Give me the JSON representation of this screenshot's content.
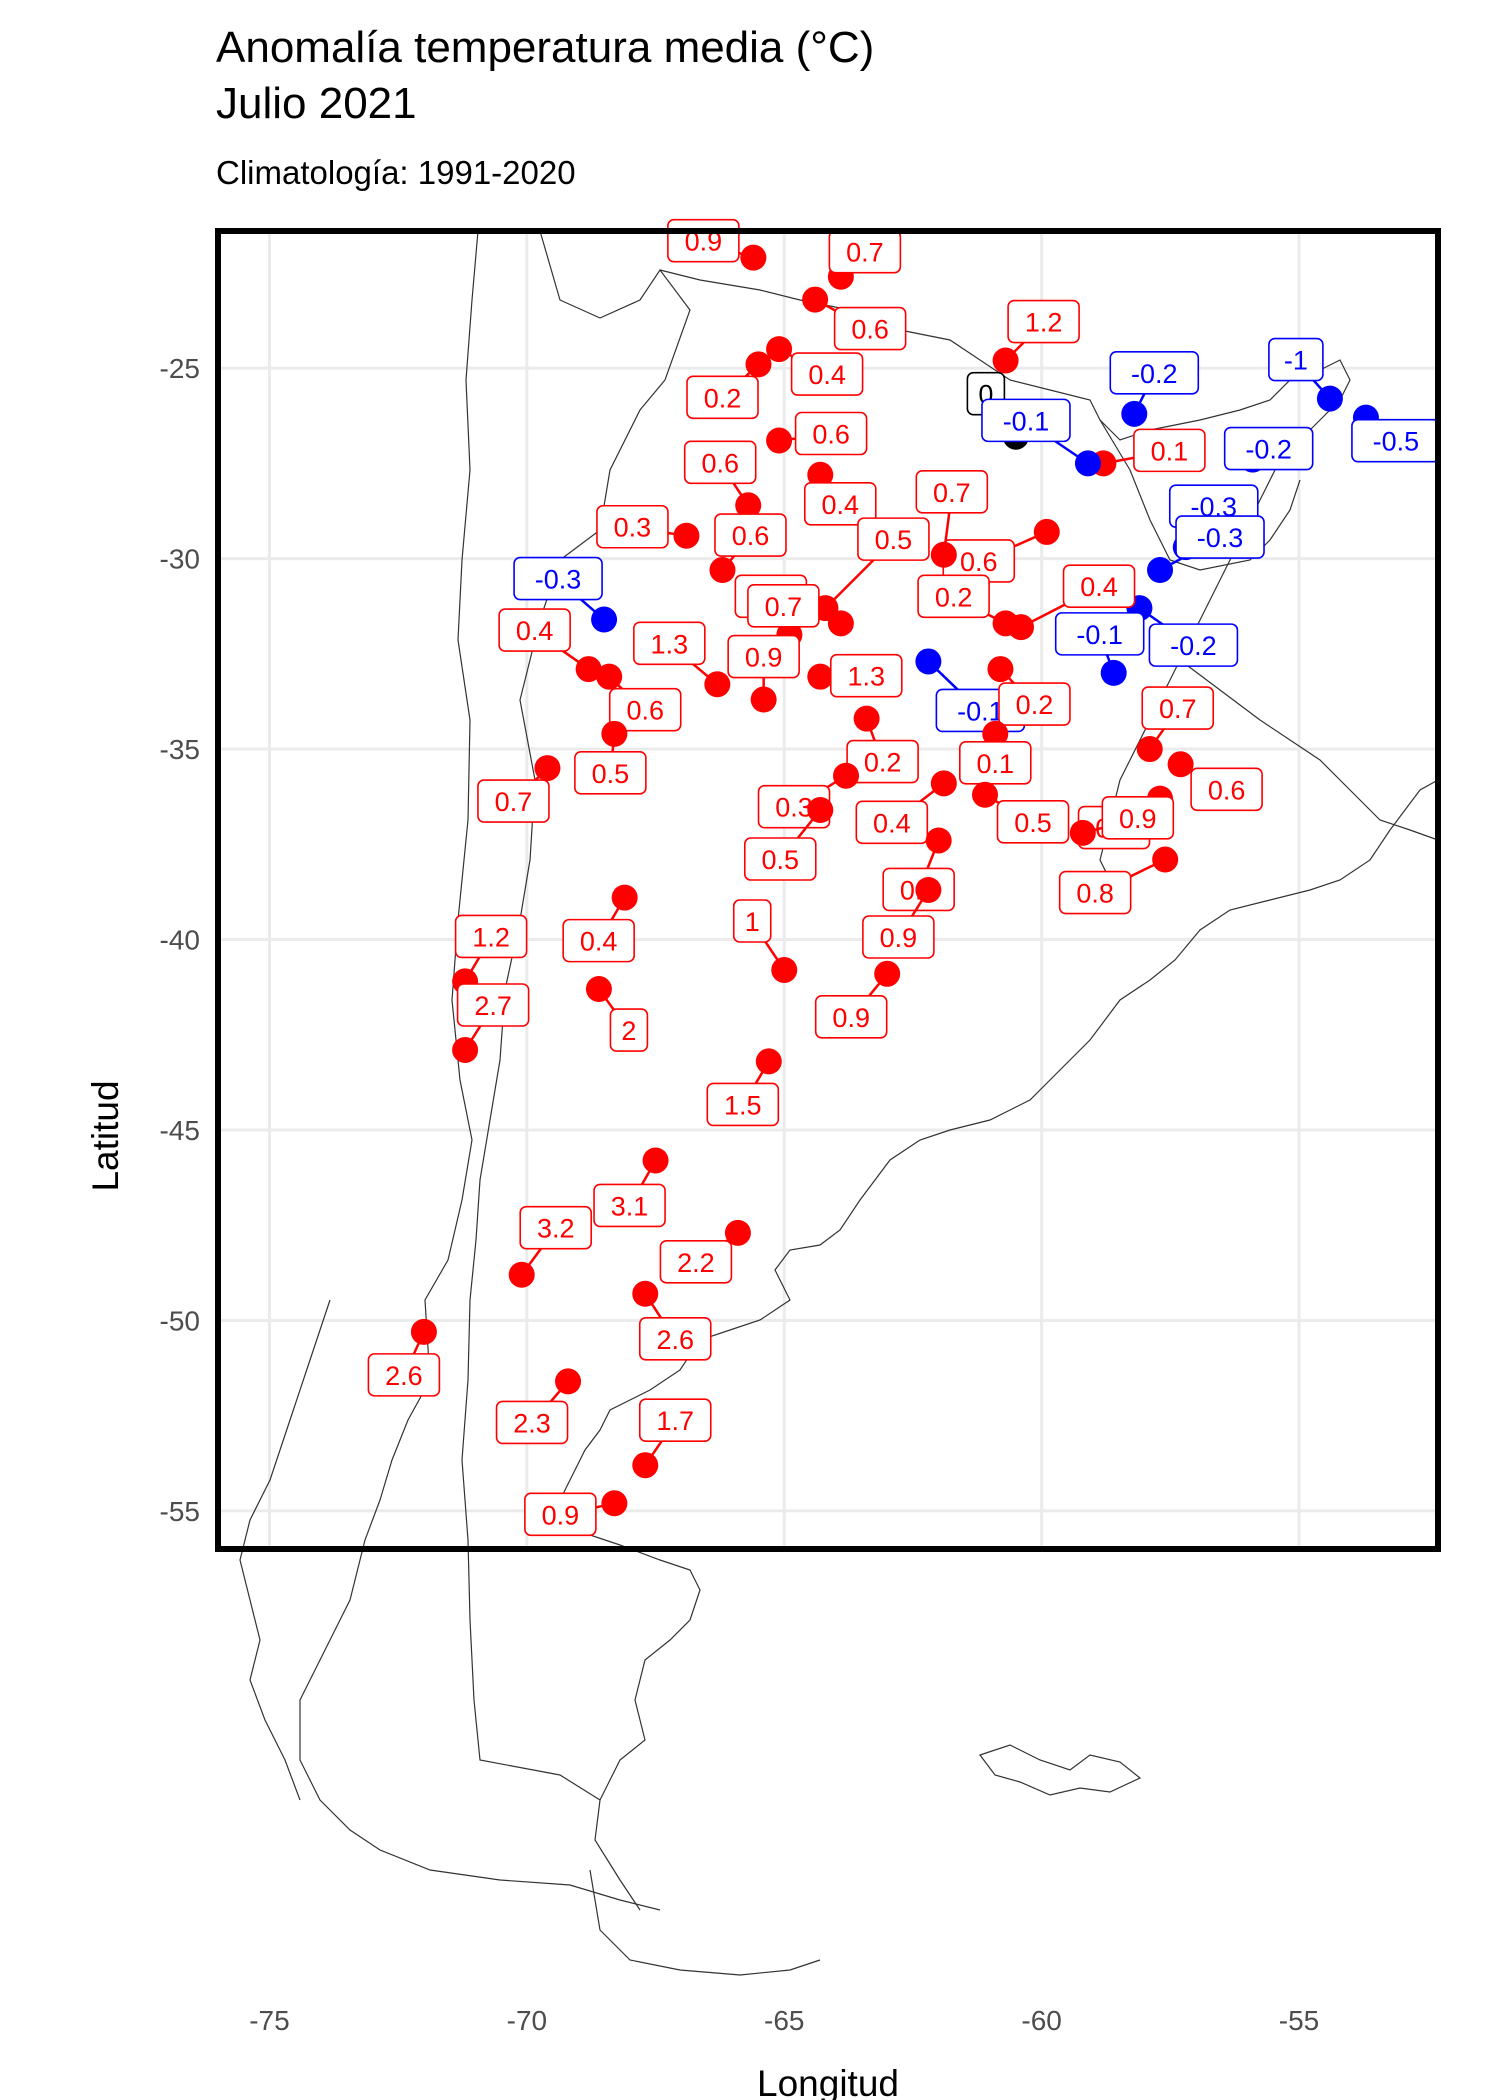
{
  "chart_data": {
    "type": "scatter",
    "title": "Anomalía temperatura media (°C)",
    "title_line2": "Julio 2021",
    "subtitle": "Climatología: 1991-2020",
    "xlabel": "Longitud",
    "ylabel": "Latitud",
    "xlim": [
      -76,
      -52.3
    ],
    "ylim": [
      -56,
      -21.4
    ],
    "xticks": [
      -75,
      -70,
      -65,
      -60,
      -55
    ],
    "yticks": [
      -55,
      -50,
      -45,
      -40,
      -35,
      -30,
      -25
    ],
    "grid": true,
    "colors": {
      "positive": "#ff0000",
      "negative": "#0000ff",
      "zero": "#000000"
    },
    "points": [
      {
        "lon": -65.6,
        "lat": -22.1,
        "value": "0.9"
      },
      {
        "lon": -63.9,
        "lat": -22.6,
        "value": "0.7"
      },
      {
        "lon": -64.4,
        "lat": -23.2,
        "value": "0.6"
      },
      {
        "lon": -60.7,
        "lat": -24.8,
        "value": "1.2"
      },
      {
        "lon": -65.1,
        "lat": -24.5,
        "value": "0.4"
      },
      {
        "lon": -65.5,
        "lat": -24.9,
        "value": "0.2"
      },
      {
        "lon": -54.4,
        "lat": -25.8,
        "value": "-1"
      },
      {
        "lon": -58.2,
        "lat": -26.2,
        "value": "-0.2"
      },
      {
        "lon": -53.7,
        "lat": -26.3,
        "value": "-0.5"
      },
      {
        "lon": -60.5,
        "lat": -26.8,
        "value": "0"
      },
      {
        "lon": -65.1,
        "lat": -26.9,
        "value": "0.6"
      },
      {
        "lon": -58.8,
        "lat": -27.5,
        "value": "0.1"
      },
      {
        "lon": -59.1,
        "lat": -27.5,
        "value": "-0.1"
      },
      {
        "lon": -55.9,
        "lat": -27.4,
        "value": "-0.2"
      },
      {
        "lon": -64.3,
        "lat": -27.8,
        "value": "0.4"
      },
      {
        "lon": -65.7,
        "lat": -28.6,
        "value": "0.6"
      },
      {
        "lon": -59.9,
        "lat": -29.3,
        "value": "0.6"
      },
      {
        "lon": -66.9,
        "lat": -29.4,
        "value": "0.3"
      },
      {
        "lon": -57.2,
        "lat": -29.7,
        "value": "-0.3"
      },
      {
        "lon": -61.9,
        "lat": -29.9,
        "value": "0.7"
      },
      {
        "lon": -66.2,
        "lat": -30.3,
        "value": "0.6"
      },
      {
        "lon": -57.7,
        "lat": -30.3,
        "value": "-0.3"
      },
      {
        "lon": -64.2,
        "lat": -31.3,
        "value": "0.5"
      },
      {
        "lon": -58.1,
        "lat": -31.3,
        "value": "-0.2"
      },
      {
        "lon": -68.5,
        "lat": -31.6,
        "value": "-0.3"
      },
      {
        "lon": -63.9,
        "lat": -31.7,
        "value": "0.7"
      },
      {
        "lon": -60.7,
        "lat": -31.7,
        "value": "0.2"
      },
      {
        "lon": -60.4,
        "lat": -31.8,
        "value": "0.4"
      },
      {
        "lon": -64.9,
        "lat": -32.0,
        "value": "0.7"
      },
      {
        "lon": -62.2,
        "lat": -32.7,
        "value": "-0.1"
      },
      {
        "lon": -68.8,
        "lat": -32.9,
        "value": "0.4"
      },
      {
        "lon": -60.8,
        "lat": -32.9,
        "value": "0.2"
      },
      {
        "lon": -58.6,
        "lat": -33.0,
        "value": "-0.1"
      },
      {
        "lon": -68.4,
        "lat": -33.1,
        "value": "0.6"
      },
      {
        "lon": -64.3,
        "lat": -33.1,
        "value": "1.3"
      },
      {
        "lon": -66.3,
        "lat": -33.3,
        "value": "1.3"
      },
      {
        "lon": -65.4,
        "lat": -33.7,
        "value": "0.9"
      },
      {
        "lon": -63.4,
        "lat": -34.2,
        "value": "0.2"
      },
      {
        "lon": -60.9,
        "lat": -34.6,
        "value": "0.1"
      },
      {
        "lon": -68.3,
        "lat": -34.6,
        "value": "0.5"
      },
      {
        "lon": -57.9,
        "lat": -35.0,
        "value": "0.7"
      },
      {
        "lon": -69.6,
        "lat": -35.5,
        "value": "0.7"
      },
      {
        "lon": -57.3,
        "lat": -35.4,
        "value": "0.6"
      },
      {
        "lon": -63.8,
        "lat": -35.7,
        "value": "0.3"
      },
      {
        "lon": -61.9,
        "lat": -35.9,
        "value": "0.4"
      },
      {
        "lon": -61.1,
        "lat": -36.2,
        "value": "0.5"
      },
      {
        "lon": -57.7,
        "lat": -36.3,
        "value": "0.6"
      },
      {
        "lon": -64.3,
        "lat": -36.6,
        "value": "0.5"
      },
      {
        "lon": -59.2,
        "lat": -37.2,
        "value": "0.9"
      },
      {
        "lon": -62.0,
        "lat": -37.4,
        "value": "0.7"
      },
      {
        "lon": -57.6,
        "lat": -37.9,
        "value": "0.8"
      },
      {
        "lon": -62.2,
        "lat": -38.7,
        "value": "0.9"
      },
      {
        "lon": -68.1,
        "lat": -38.9,
        "value": "0.4"
      },
      {
        "lon": -71.2,
        "lat": -41.1,
        "value": "1.2"
      },
      {
        "lon": -68.6,
        "lat": -41.3,
        "value": "2"
      },
      {
        "lon": -65.0,
        "lat": -40.8,
        "value": "1"
      },
      {
        "lon": -63.0,
        "lat": -40.9,
        "value": "0.9"
      },
      {
        "lon": -71.2,
        "lat": -42.9,
        "value": "2.7"
      },
      {
        "lon": -65.3,
        "lat": -43.2,
        "value": "1.5"
      },
      {
        "lon": -67.5,
        "lat": -45.8,
        "value": "3.1"
      },
      {
        "lon": -65.9,
        "lat": -47.7,
        "value": "2.2"
      },
      {
        "lon": -70.1,
        "lat": -48.8,
        "value": "3.2"
      },
      {
        "lon": -67.7,
        "lat": -49.3,
        "value": "2.6"
      },
      {
        "lon": -72.0,
        "lat": -50.3,
        "value": "2.6"
      },
      {
        "lon": -69.2,
        "lat": -51.6,
        "value": "2.3"
      },
      {
        "lon": -67.7,
        "lat": -53.8,
        "value": "1.7"
      },
      {
        "lon": -68.3,
        "lat": -54.8,
        "value": "0.9"
      }
    ]
  }
}
